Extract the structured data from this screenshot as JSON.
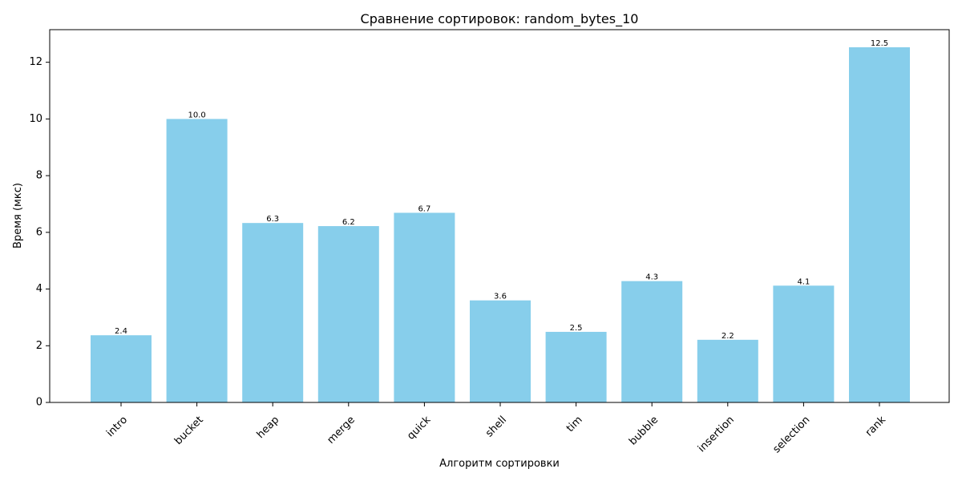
{
  "chart_data": {
    "type": "bar",
    "title": "Сравнение сортировок: random_bytes_10",
    "xlabel": "Алгоритм сортировки",
    "ylabel": "Время (мкс)",
    "categories": [
      "intro",
      "bucket",
      "heap",
      "merge",
      "quick",
      "shell",
      "tim",
      "bubble",
      "insertion",
      "selection",
      "rank"
    ],
    "values": [
      2.37,
      10.0,
      6.33,
      6.22,
      6.69,
      3.6,
      2.49,
      4.28,
      2.21,
      4.12,
      12.53
    ],
    "value_labels": [
      "2.4",
      "10.0",
      "6.3",
      "6.2",
      "6.7",
      "3.6",
      "2.5",
      "4.3",
      "2.2",
      "4.1",
      "12.5"
    ],
    "ylim": [
      0,
      13.15
    ],
    "yticks": [
      0,
      2,
      4,
      6,
      8,
      10,
      12
    ],
    "grid": false,
    "bar_color": "#87CEEB"
  }
}
